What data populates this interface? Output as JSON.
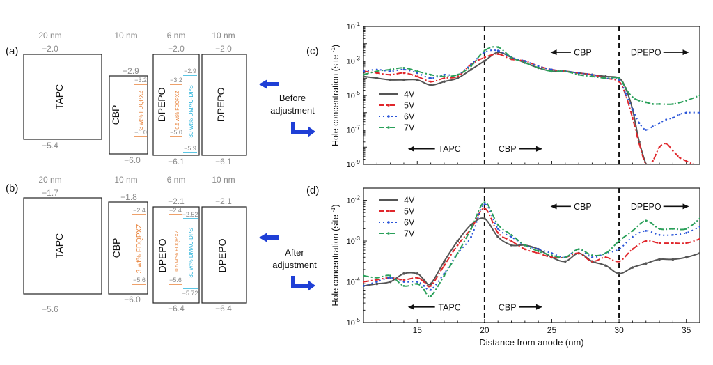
{
  "colors": {
    "grey": "#555555",
    "orange": "#e8823a",
    "cyan": "#26b3dc",
    "blue_arrow": "#1f3fd6",
    "series": [
      "#555555",
      "#e0262b",
      "#2a55d8",
      "#2aa05a"
    ]
  },
  "panel_a": {
    "label": "(a)",
    "layers": [
      {
        "name": "TAPC",
        "thickness": "20 nm",
        "lumo": "−2.0",
        "homo": "−5.4"
      },
      {
        "name": "CBP",
        "thickness": "10 nm",
        "lumo": "−2.9",
        "homo": "−6.0"
      },
      {
        "name": "DPEPO",
        "thickness": "6 nm",
        "lumo": "−2.0",
        "homo": "−6.1"
      },
      {
        "name": "DPEPO",
        "thickness": "10 nm",
        "lumo": "−2.0",
        "homo": "−6.1"
      }
    ],
    "dopant_fdqpxz_cbp": {
      "label": "3 wt% FDQPXZ",
      "top": "−3.2",
      "bottom": "−5.0"
    },
    "dopant_fdqpxz_dpepo": {
      "label": "0.5 wt% FDQPXZ",
      "top": "−3.2",
      "bottom": "−5.0"
    },
    "dopant_dmac": {
      "label": "30 wt% DMAC-DPS",
      "top": "−2.9",
      "bottom": "−5.9"
    }
  },
  "panel_b": {
    "label": "(b)",
    "layers": [
      {
        "name": "TAPC",
        "thickness": "20 nm",
        "lumo": "−1.7",
        "homo": "−5.6"
      },
      {
        "name": "CBP",
        "thickness": "10 nm",
        "lumo": "−1.8",
        "homo": "−6.0"
      },
      {
        "name": "DPEPO",
        "thickness": "6 nm",
        "lumo": "−2.1",
        "homo": "−6.4"
      },
      {
        "name": "DPEPO",
        "thickness": "10 nm",
        "lumo": "−2.1",
        "homo": "−6.4"
      }
    ],
    "dopant_fdqpxz_cbp": {
      "label": "3 wt% FDQPXZ",
      "top": "−2.4",
      "bottom": "−5.6"
    },
    "dopant_fdqpxz_dpepo": {
      "label": "0.5 wt% FDQPXZ",
      "top": "−2.4",
      "bottom": "−5.6"
    },
    "dopant_dmac": {
      "label": "30 wt% DMAC-DPS",
      "top": "−2.52",
      "bottom": "−5.72"
    }
  },
  "arrow_labels": {
    "before": [
      "Before",
      "adjustment"
    ],
    "after": [
      "After",
      "adjustment"
    ]
  },
  "chart_data": [
    {
      "panel": "(c)",
      "type": "line",
      "ylabel": "Hole concentration (site",
      "ylabel_sup": "-1",
      "ylabel_close": ")",
      "xlim": [
        11,
        36
      ],
      "ylim_exp": [
        -9,
        -1
      ],
      "log_y": true,
      "y_tick_exps": [
        -9,
        -7,
        -5,
        -3,
        -1
      ],
      "regions": [
        {
          "label": "TAPC",
          "x": 17.4,
          "y_exp": -8.1
        },
        {
          "label": "CBP",
          "x": 21.7,
          "y_exp": -8.1
        },
        {
          "label": "CBP",
          "x": 27.3,
          "y_exp": -2.5
        },
        {
          "label": "DPEPO",
          "x": 32.0,
          "y_exp": -2.5
        }
      ],
      "legend": [
        "4V",
        "5V",
        "6V",
        "7V"
      ],
      "series": [
        {
          "name": "4V",
          "x": [
            11,
            12,
            13,
            14,
            15,
            16,
            17,
            18,
            19,
            20,
            21,
            22,
            23,
            24,
            25,
            26,
            27,
            28,
            29,
            30,
            30.5,
            31,
            31.5,
            32
          ],
          "y_exp": [
            -3.9,
            -4.0,
            -4.1,
            -4.1,
            -4.1,
            -4.4,
            -4.2,
            -4.0,
            -3.5,
            -3.0,
            -2.5,
            -2.8,
            -3.1,
            -3.4,
            -3.6,
            -3.6,
            -3.7,
            -3.8,
            -3.9,
            -4.0,
            -4.6,
            -5.8,
            -7.7,
            -9.0
          ]
        },
        {
          "name": "5V",
          "x": [
            11,
            12,
            13,
            14,
            15,
            16,
            17,
            18,
            19,
            20,
            21,
            22,
            23,
            24,
            25,
            26,
            27,
            28,
            29,
            30,
            30.5,
            31,
            31.5,
            32,
            32.5,
            33,
            33.5,
            34,
            34.5,
            35,
            35.5
          ],
          "y_exp": [
            -3.6,
            -3.7,
            -3.8,
            -3.7,
            -3.9,
            -4.2,
            -4.0,
            -3.9,
            -3.2,
            -2.8,
            -2.6,
            -2.9,
            -3.0,
            -3.3,
            -3.5,
            -3.6,
            -3.7,
            -3.8,
            -4.0,
            -4.2,
            -5.0,
            -6.3,
            -7.8,
            -9.0,
            -8.8,
            -8.0,
            -7.8,
            -8.2,
            -8.6,
            -8.8,
            -9.0
          ]
        },
        {
          "name": "6V",
          "x": [
            11,
            12,
            13,
            14,
            15,
            16,
            17,
            18,
            19,
            20,
            21,
            22,
            23,
            24,
            25,
            26,
            27,
            28,
            29,
            30,
            30.5,
            31,
            31.5,
            32,
            32.5,
            33,
            33.5,
            34,
            34.5,
            35,
            36
          ],
          "y_exp": [
            -3.6,
            -3.5,
            -3.6,
            -3.5,
            -3.7,
            -4.0,
            -3.8,
            -3.8,
            -3.2,
            -2.5,
            -2.4,
            -2.8,
            -3.0,
            -3.3,
            -3.5,
            -3.6,
            -3.7,
            -3.8,
            -4.0,
            -4.1,
            -4.9,
            -5.8,
            -6.6,
            -7.0,
            -6.8,
            -6.6,
            -6.4,
            -6.3,
            -6.1,
            -6.0,
            -6.0
          ]
        },
        {
          "name": "7V",
          "x": [
            11,
            12,
            13,
            14,
            15,
            16,
            17,
            18,
            19,
            20,
            21,
            22,
            23,
            24,
            25,
            26,
            27,
            28,
            29,
            30,
            30.5,
            31,
            31.5,
            32,
            32.5,
            33,
            34,
            35,
            36
          ],
          "y_exp": [
            -3.8,
            -3.6,
            -3.5,
            -3.4,
            -3.6,
            -3.8,
            -3.9,
            -3.8,
            -3.3,
            -2.4,
            -2.2,
            -2.8,
            -3.1,
            -3.4,
            -3.6,
            -3.6,
            -3.8,
            -3.9,
            -4.0,
            -4.0,
            -4.6,
            -5.1,
            -5.3,
            -5.4,
            -5.5,
            -5.5,
            -5.5,
            -5.3,
            -5.0
          ]
        }
      ]
    },
    {
      "panel": "(d)",
      "type": "line",
      "xlabel": "Distance from anode (nm)",
      "ylabel": "Hole concentration (site",
      "ylabel_sup": "-1",
      "ylabel_close": ")",
      "xlim": [
        11,
        36
      ],
      "ylim_exp": [
        -5,
        -1.7
      ],
      "log_y": true,
      "y_tick_exps": [
        -5,
        -4,
        -3,
        -2
      ],
      "x_ticks": [
        15,
        20,
        25,
        30,
        35
      ],
      "regions": [
        {
          "label": "TAPC",
          "x": 17.4,
          "y_exp": -4.62
        },
        {
          "label": "CBP",
          "x": 21.7,
          "y_exp": -4.62
        },
        {
          "label": "CBP",
          "x": 27.3,
          "y_exp": -2.15
        },
        {
          "label": "DPEPO",
          "x": 32.0,
          "y_exp": -2.15
        }
      ],
      "legend": [
        "4V",
        "5V",
        "6V",
        "7V"
      ],
      "series": [
        {
          "name": "4V",
          "x": [
            11,
            12,
            13,
            14,
            15,
            15.5,
            16,
            17,
            18,
            19,
            20,
            21,
            22,
            23,
            24,
            25,
            26,
            27,
            28,
            29,
            30,
            31,
            32,
            33,
            34,
            35,
            36
          ],
          "y_exp": [
            -4.1,
            -4.05,
            -4.0,
            -3.8,
            -3.8,
            -3.95,
            -4.05,
            -3.5,
            -3.0,
            -2.6,
            -2.45,
            -2.9,
            -3.1,
            -3.1,
            -3.2,
            -3.4,
            -3.5,
            -3.3,
            -3.5,
            -3.6,
            -3.8,
            -3.65,
            -3.55,
            -3.45,
            -3.45,
            -3.4,
            -3.3
          ]
        },
        {
          "name": "5V",
          "x": [
            11,
            12,
            13,
            14,
            15,
            15.5,
            16,
            17,
            18,
            19,
            20,
            21,
            22,
            23,
            24,
            25,
            26,
            27,
            28,
            29,
            30,
            31,
            32,
            33,
            34,
            35,
            36
          ],
          "y_exp": [
            -4.0,
            -3.95,
            -3.9,
            -3.95,
            -3.9,
            -4.0,
            -4.1,
            -3.6,
            -3.1,
            -2.7,
            -2.2,
            -2.8,
            -3.0,
            -3.2,
            -3.3,
            -3.4,
            -3.4,
            -3.3,
            -3.5,
            -3.4,
            -3.5,
            -3.2,
            -3.0,
            -3.05,
            -3.05,
            -3.05,
            -2.95
          ]
        },
        {
          "name": "6V",
          "x": [
            11,
            12,
            13,
            14,
            15,
            15.5,
            16,
            17,
            18,
            19,
            20,
            21,
            22,
            23,
            24,
            25,
            26,
            27,
            28,
            29,
            30,
            31,
            32,
            33,
            34,
            35,
            36
          ],
          "y_exp": [
            -4.1,
            -4.0,
            -3.9,
            -4.0,
            -4.0,
            -4.1,
            -4.2,
            -3.8,
            -3.3,
            -2.9,
            -2.1,
            -2.7,
            -2.9,
            -3.1,
            -3.2,
            -3.3,
            -3.4,
            -3.2,
            -3.4,
            -3.3,
            -3.2,
            -2.9,
            -2.75,
            -2.85,
            -2.85,
            -2.8,
            -2.65
          ]
        },
        {
          "name": "7V",
          "x": [
            11,
            12,
            13,
            14,
            15,
            15.5,
            16,
            17,
            18,
            19,
            20,
            21,
            22,
            23,
            24,
            25,
            26,
            27,
            28,
            29,
            30,
            31,
            32,
            33,
            34,
            35,
            36
          ],
          "y_exp": [
            -3.85,
            -3.9,
            -3.85,
            -4.1,
            -4.05,
            -4.2,
            -4.35,
            -3.85,
            -3.3,
            -2.7,
            -2.05,
            -2.6,
            -2.85,
            -3.1,
            -3.25,
            -3.35,
            -3.4,
            -3.2,
            -3.35,
            -3.3,
            -3.0,
            -2.75,
            -2.5,
            -2.7,
            -2.7,
            -2.7,
            -2.45
          ]
        }
      ]
    }
  ]
}
